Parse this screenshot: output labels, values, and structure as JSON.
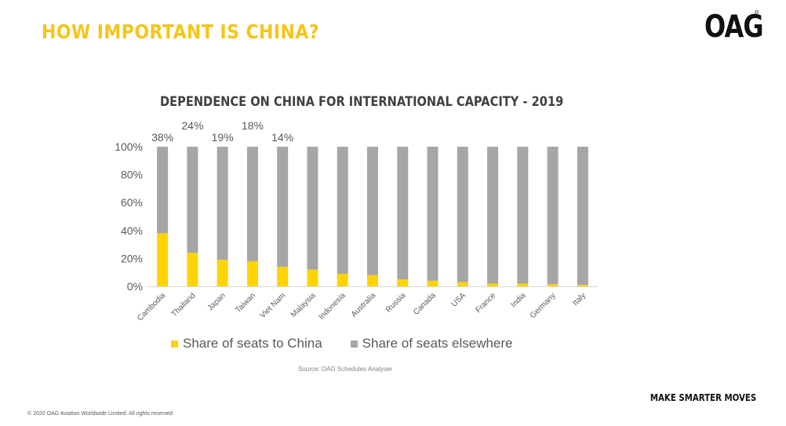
{
  "slide": {
    "title": "HOW IMPORTANT IS CHINA?",
    "logo": "OAG",
    "logo_mark": "®",
    "tagline": "MAKE SMARTER MOVES",
    "copyright": "© 2020 OAG Aviation Worldwide Limited. All rights reserved"
  },
  "colors": {
    "title": "#F5C518",
    "china": "#FFD400",
    "elsewhere": "#A6A6A6",
    "text": "#595959"
  },
  "chart_data": {
    "type": "bar",
    "stacked": true,
    "percent": true,
    "title": "DEPENDENCE ON CHINA FOR INTERNATIONAL CAPACITY - 2019",
    "categories": [
      "Cambodia",
      "Thailand",
      "Japan",
      "Taiwan",
      "Viet Nam",
      "Malaysia",
      "Indonesia",
      "Australia",
      "Russia",
      "Canada",
      "USA",
      "France",
      "India",
      "Germany",
      "Italy"
    ],
    "series": [
      {
        "name": "Share of seats to China",
        "values": [
          38,
          24,
          19,
          18,
          14,
          12,
          9,
          8,
          5,
          4,
          3,
          2,
          2,
          1.5,
          1
        ]
      },
      {
        "name": "Share of seats elsewhere",
        "values": [
          62,
          76,
          81,
          82,
          86,
          88,
          91,
          92,
          95,
          96,
          97,
          98,
          98,
          98.5,
          99
        ]
      }
    ],
    "data_labels": [
      "38%",
      "24%",
      "19%",
      "18%",
      "14%",
      "",
      "",
      "",
      "",
      "",
      "",
      "",
      "",
      "",
      ""
    ],
    "yticks": [
      "0%",
      "20%",
      "40%",
      "60%",
      "80%",
      "100%"
    ],
    "ylim": [
      0,
      100
    ],
    "legend": "bottom",
    "grid": false,
    "source": "Source: OAG Schedules Analyser"
  }
}
